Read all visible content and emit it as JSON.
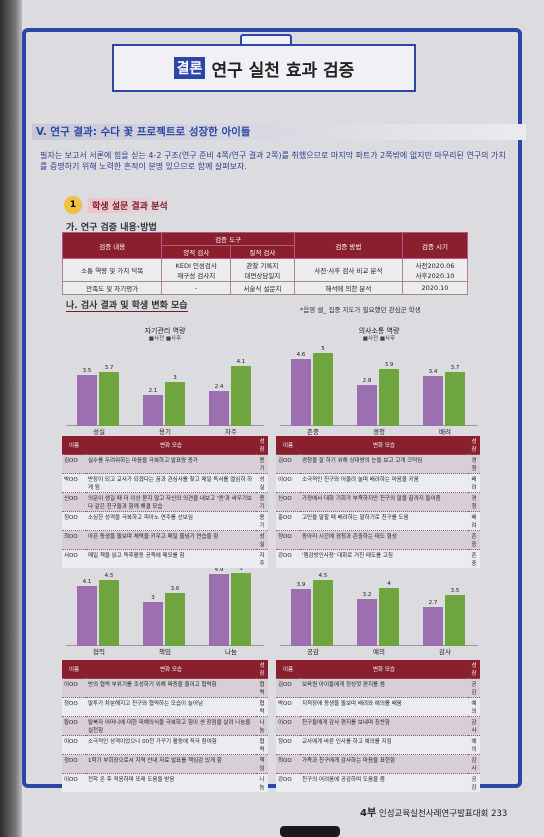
{
  "title_tag": "결론",
  "title_text": "연구 실천 효과 검증",
  "section_heading": "V. 연구 결과: 수다 꽃 프로젝트로 성장한 아이들",
  "intro_text": "필자는 보고서 서론에 힘을 싣는 4-2 구조(연구 준비 4쪽/연구 결과 2쪽)를 취했으므로 마지막 파트가 2쪽밖에 없지만 마무리된 연구의 가치를 증명하기 위해 노력한 흔적이 분명 있으므로 함께 살펴보자.",
  "sub1_num": "1",
  "sub1_label": "학생 설문 결과 분석",
  "sub_ga": "가. 연구 검증 내용·방법",
  "sub_na": "나. 검사 결과 및 학생 변화 모습",
  "note": "*음영 셀_ 집중 지도가 필요했던 관심군 학생",
  "method_table": {
    "h_content": "검증 내용",
    "h_tools": "검증 도구",
    "h_survey": "양적 검사",
    "h_observe": "질적 검사",
    "h_method": "검증 방법",
    "h_time": "검증 시기",
    "row1_content": "소통 역량 및 가치 덕목",
    "row1_survey_a": "KEDI 인성검사",
    "row1_survey_b": "재구성 검사지",
    "row1_obs_a": "관찰 기록지",
    "row1_obs_b": "대면상담일지",
    "row1_method": "사전·사후 검사 비교 분석",
    "row1_time_a": "사전2020.06",
    "row1_time_b": "사후2020.10",
    "row2_content": "만족도 및 자기평가",
    "row2_survey": "-",
    "row2_obs": "서술식 설문지",
    "row2_method": "해석에 의한 분석",
    "row2_time": "2020.10"
  },
  "legend_pre": "사전",
  "legend_post": "사후",
  "chart_data": [
    {
      "type": "bar",
      "title": "자기관리 역량",
      "categories": [
        "성실",
        "용기",
        "자주"
      ],
      "series": [
        {
          "name": "사전",
          "values": [
            3.5,
            2.1,
            2.4
          ]
        },
        {
          "name": "사후",
          "values": [
            3.7,
            3.0,
            4.1
          ]
        }
      ]
    },
    {
      "type": "bar",
      "title": "의사소통 역량",
      "categories": [
        "존중",
        "경청",
        "배려"
      ],
      "series": [
        {
          "name": "사전",
          "values": [
            4.6,
            2.8,
            3.4
          ]
        },
        {
          "name": "사후",
          "values": [
            5.0,
            3.9,
            3.7
          ]
        }
      ]
    },
    {
      "type": "bar",
      "title": "공동체 역량",
      "categories": [
        "협력",
        "책임",
        "나눔"
      ],
      "series": [
        {
          "name": "사전",
          "values": [
            4.1,
            3.0,
            4.9
          ]
        },
        {
          "name": "사후",
          "values": [
            4.5,
            3.6,
            5.0
          ]
        }
      ]
    },
    {
      "type": "bar",
      "title": "심미적 감성 역량",
      "categories": [
        "공감",
        "예의",
        "감사"
      ],
      "series": [
        {
          "name": "사전",
          "values": [
            3.9,
            3.2,
            2.7
          ]
        },
        {
          "name": "사후",
          "values": [
            4.5,
            4.0,
            3.5
          ]
        }
      ]
    }
  ],
  "rt_headers": {
    "name": "이름",
    "change": "변화 모습",
    "growth": "성장"
  },
  "rt1": [
    {
      "n": "김OO",
      "c": "실수를 두려워하는 마음을 극복하고 발표량 증가",
      "g": "용기"
    },
    {
      "n": "박OO",
      "c": "반장이 되고 교사가 되겠다는 꿈과 관심사를 찾고 매일 독서를 열심히 하게 됨",
      "g": "성실"
    },
    {
      "n": "신OO",
      "c": "의문이 생길 때 더 이상 묻지 않고 자신의 의견을 내보고 '엔'과 싸우기보다 같은 친구들과 함께 해결 모습",
      "g": "용기"
    },
    {
      "n": "정OO",
      "c": "소심한 성격을 극복하고 피아노 연주를 선보임",
      "g": "용기"
    },
    {
      "n": "최OO",
      "c": "아픈 동생을 돌보며 체력을 키우고 매일 줄넘기 연습을 함",
      "g": "성실"
    },
    {
      "n": "서OO",
      "c": "매일 책을 읽고 독후활동 공책에 메모를 함",
      "g": "자주"
    }
  ],
  "rt2": [
    {
      "n": "김OO",
      "c": "경청을 잘 하기 위해 상대방의 눈을 보고 고개 끄덕임",
      "g": "경청"
    },
    {
      "n": "이OO",
      "c": "소극적인 친구와 어울려 놀며 배려하는 마음을 키움",
      "g": "배려"
    },
    {
      "n": "신OO",
      "c": "가정에서 대화 기회가 부족하지만 친구의 말을 끝까지 들어줌",
      "g": "경청"
    },
    {
      "n": "홍OO",
      "c": "고민을 말할 때 배려하는 말하기로 친구를 도움",
      "g": "배려"
    },
    {
      "n": "정OO",
      "c": "동아리 시간에 경청과 존중하는 태도 형성",
      "g": "존중"
    },
    {
      "n": "강OO",
      "c": "'행감방인사장' 대화로 거친 태도를 고침",
      "g": "존중"
    }
  ],
  "rt3": [
    {
      "n": "이OO",
      "c": "반의 협력 부위기를 조성하기 위해 짜증을 줄이고 협력함",
      "g": "협력"
    },
    {
      "n": "정OO",
      "c": "말투가 차분해지고 친구와 협력하는 모습이 늘어남",
      "g": "협력"
    },
    {
      "n": "황OO",
      "c": "탈북자 어머니에 대한 피해의식을 극복하고 힘이 센 장점을 살려 나눔을 실천함",
      "g": "나눔"
    },
    {
      "n": "이OO",
      "c": "소극적인 성격이었으나 00천 가꾸기 활동에 적극 참여함",
      "g": "협력"
    },
    {
      "n": "정OO",
      "c": "1학기 부회장으로서 지역 안내 자료 발표를 책임감 있게 함",
      "g": "책임"
    },
    {
      "n": "이OO",
      "c": "전학 온 후 적응하며 또래 도움을 받음",
      "g": "나눔"
    }
  ],
  "rt4": [
    {
      "n": "김OO",
      "c": "보육원 아이들에게 정성껏 편지를 씀",
      "g": "공감"
    },
    {
      "n": "박OO",
      "c": "지적장애 동생을 돌보며 배려와 예의를 배움",
      "g": "예의"
    },
    {
      "n": "이OO",
      "c": "친구들에게 감사 편지를 보내며 칭찬함",
      "g": "감사"
    },
    {
      "n": "정OO",
      "c": "교사에게 바른 인사를 하고 예의를 지킴",
      "g": "예의"
    },
    {
      "n": "최OO",
      "c": "가족과 친구에게 감사하는 마음을 표현함",
      "g": "감사"
    },
    {
      "n": "강OO",
      "c": "친구의 어려움에 공감하며 도움을 줌",
      "g": "공감"
    }
  ],
  "footer_part": "4부",
  "footer_text": "인성교육실천사례연구발표대회",
  "footer_page": "233"
}
